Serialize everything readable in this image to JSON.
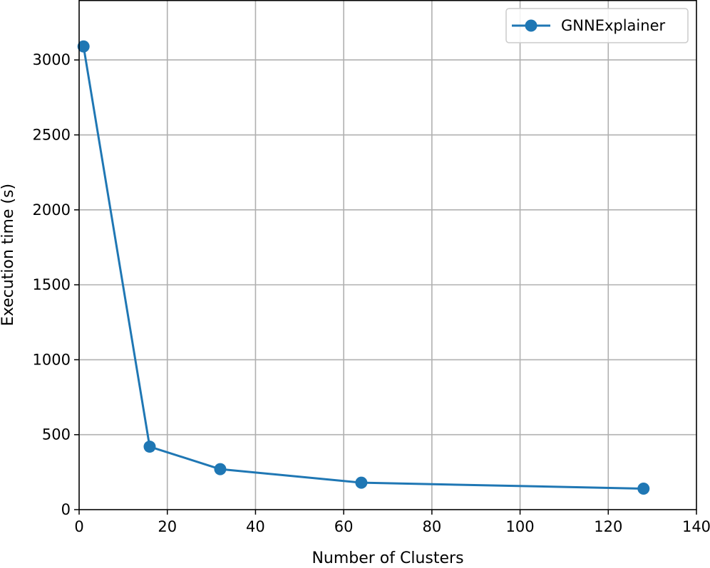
{
  "chart_data": {
    "type": "line",
    "title": "",
    "xlabel": "Number of Clusters",
    "ylabel": "Execution time (s)",
    "xlim": [
      0,
      140
    ],
    "ylim": [
      0,
      3400
    ],
    "xticks": [
      0,
      20,
      40,
      60,
      80,
      100,
      120,
      140
    ],
    "yticks": [
      0,
      500,
      1000,
      1500,
      2000,
      2500,
      3000
    ],
    "grid": true,
    "legend_position": "top-right",
    "series": [
      {
        "name": "GNNExplainer",
        "color": "#1f77b4",
        "marker": "circle",
        "x": [
          1,
          16,
          32,
          64,
          128
        ],
        "y": [
          3090,
          420,
          270,
          180,
          140
        ]
      }
    ]
  }
}
